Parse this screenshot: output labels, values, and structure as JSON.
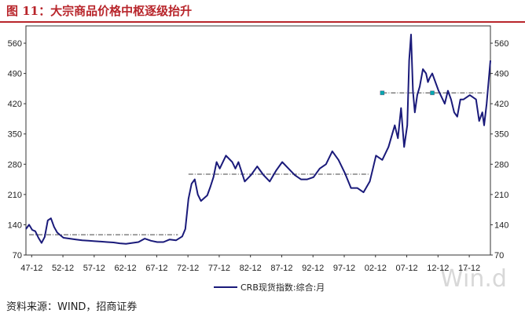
{
  "header": {
    "title": "图 11：大宗商品价格中枢逐级抬升"
  },
  "footer": {
    "source": "资料来源：WIND，招商证券"
  },
  "watermark": "Win.d",
  "colors": {
    "line": "#1a1a7a",
    "title": "#b8252b",
    "marker": "#00a8b0",
    "dash": "#444444"
  },
  "chart_data": {
    "type": "line",
    "title": "",
    "xlabel": "",
    "ylabel": "",
    "legend": {
      "position": "bottom-center",
      "entries": [
        "CRB现货指数:综合:月"
      ]
    },
    "x_ticks": [
      "47-12",
      "52-12",
      "57-12",
      "62-12",
      "67-12",
      "72-12",
      "77-12",
      "82-12",
      "87-12",
      "92-12",
      "97-12",
      "02-12",
      "07-12",
      "12-12",
      "17-12"
    ],
    "y_ticks": [
      70,
      140,
      210,
      280,
      350,
      420,
      490,
      560
    ],
    "ylim": [
      70,
      600
    ],
    "xlim": [
      1947.0,
      2021.3
    ],
    "grid": false,
    "series": [
      {
        "name": "CRB现货指数:综合:月",
        "x": [
          1947.0,
          1947.5,
          1948.0,
          1948.5,
          1949.0,
          1949.5,
          1950.0,
          1950.5,
          1951.0,
          1951.5,
          1952.0,
          1953.0,
          1954.0,
          1955.0,
          1956.0,
          1957.0,
          1958.0,
          1959.0,
          1960.0,
          1961.0,
          1962.0,
          1963.0,
          1964.0,
          1965.0,
          1966.0,
          1967.0,
          1968.0,
          1969.0,
          1970.0,
          1971.0,
          1972.0,
          1972.5,
          1973.0,
          1973.5,
          1974.0,
          1974.5,
          1975.0,
          1976.0,
          1976.5,
          1977.0,
          1977.5,
          1978.0,
          1979.0,
          1980.0,
          1980.5,
          1981.0,
          1982.0,
          1983.0,
          1984.0,
          1985.0,
          1986.0,
          1987.0,
          1988.0,
          1989.0,
          1990.0,
          1991.0,
          1992.0,
          1993.0,
          1994.0,
          1995.0,
          1996.0,
          1997.0,
          1998.0,
          1999.0,
          2000.0,
          2001.0,
          2002.0,
          2002.5,
          2003.0,
          2004.0,
          2005.0,
          2006.0,
          2006.5,
          2007.0,
          2007.5,
          2008.0,
          2008.3,
          2008.6,
          2008.9,
          2009.2,
          2009.6,
          2010.0,
          2010.5,
          2011.0,
          2011.3,
          2011.6,
          2012.0,
          2012.5,
          2013.0,
          2014.0,
          2014.5,
          2015.0,
          2015.5,
          2016.0,
          2016.5,
          2017.0,
          2018.0,
          2019.0,
          2019.5,
          2020.0,
          2020.3,
          2020.7,
          2021.0,
          2021.3
        ],
        "values": [
          130,
          140,
          128,
          125,
          110,
          98,
          112,
          150,
          155,
          135,
          122,
          110,
          108,
          106,
          104,
          103,
          102,
          101,
          100,
          99,
          97,
          96,
          98,
          100,
          108,
          103,
          100,
          100,
          106,
          104,
          113,
          130,
          200,
          235,
          245,
          210,
          195,
          208,
          228,
          250,
          285,
          270,
          300,
          285,
          270,
          285,
          240,
          255,
          275,
          255,
          240,
          265,
          285,
          270,
          255,
          245,
          245,
          250,
          270,
          280,
          310,
          290,
          260,
          225,
          225,
          215,
          240,
          270,
          300,
          290,
          320,
          370,
          340,
          410,
          320,
          370,
          520,
          580,
          450,
          400,
          440,
          460,
          500,
          490,
          470,
          480,
          490,
          470,
          450,
          420,
          450,
          430,
          400,
          390,
          430,
          430,
          440,
          430,
          380,
          400,
          370,
          420,
          470,
          520
        ]
      }
    ],
    "reference_lines": [
      {
        "x_start": 1947.5,
        "x_end": 1971.3,
        "y": 117
      },
      {
        "x_start": 1973.0,
        "x_end": 2002.0,
        "y": 257
      },
      {
        "x_start": 2004.0,
        "x_end": 2020.5,
        "y": 445
      }
    ],
    "reference_markers": [
      {
        "x": 2004.0,
        "y": 445
      },
      {
        "x": 2012.0,
        "y": 445
      }
    ]
  }
}
